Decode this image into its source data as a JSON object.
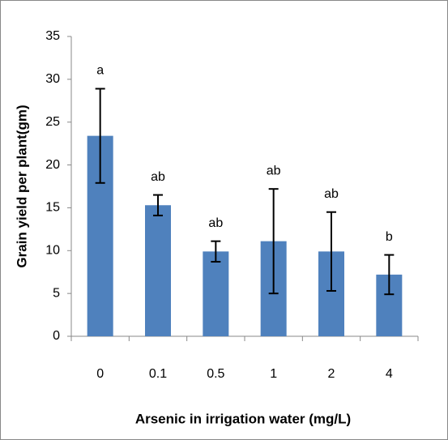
{
  "chart_data": {
    "type": "bar",
    "x_label": "Arsenic in irrigation water (mg/L)",
    "y_label": "Grain yield per plant(gm)",
    "categories": [
      "0",
      "0.1",
      "0.5",
      "1",
      "2",
      "4"
    ],
    "values": [
      23.4,
      15.3,
      9.9,
      11.1,
      9.9,
      7.2
    ],
    "errors": [
      5.5,
      1.2,
      1.2,
      6.1,
      4.6,
      2.3
    ],
    "annotations": [
      "a",
      "ab",
      "ab",
      "ab",
      "ab",
      "b"
    ],
    "color": "#4f81bd",
    "ylim": [
      0,
      35
    ],
    "yticks": [
      0,
      5,
      10,
      15,
      20,
      25,
      30,
      35
    ]
  }
}
